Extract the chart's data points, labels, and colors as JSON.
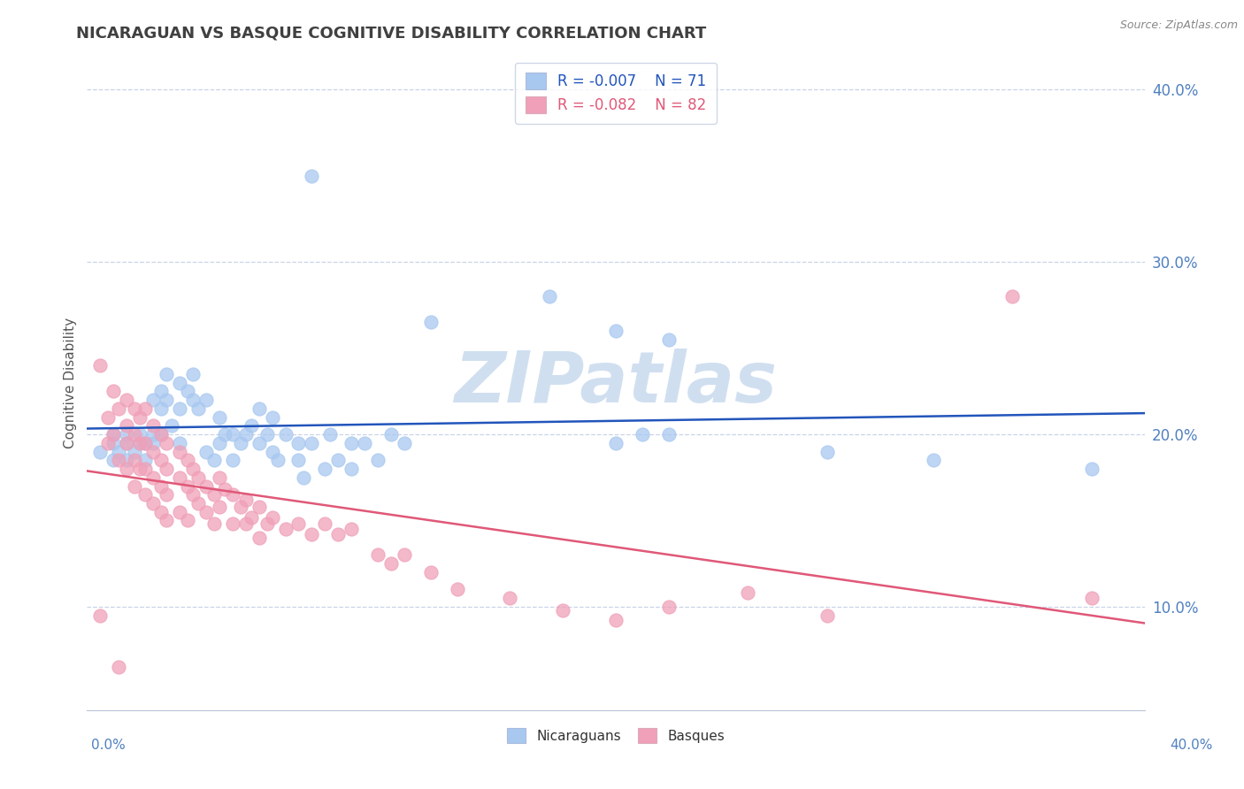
{
  "title": "NICARAGUAN VS BASQUE COGNITIVE DISABILITY CORRELATION CHART",
  "source": "Source: ZipAtlas.com",
  "ylabel": "Cognitive Disability",
  "xlim": [
    0.0,
    0.4
  ],
  "ylim": [
    0.04,
    0.42
  ],
  "yticks": [
    0.1,
    0.2,
    0.3,
    0.4
  ],
  "ytick_labels": [
    "10.0%",
    "20.0%",
    "30.0%",
    "40.0%"
  ],
  "xtick_labels": [
    "0.0%",
    "40.0%"
  ],
  "legend_blue_r": "R = -0.007",
  "legend_blue_n": "N = 71",
  "legend_pink_r": "R = -0.082",
  "legend_pink_n": "N = 82",
  "blue_color": "#a8c8f0",
  "pink_color": "#f0a0b8",
  "regression_blue_color": "#2255bb",
  "regression_pink_color": "#e05878",
  "watermark_text": "ZIPatlas",
  "watermark_color": "#d0dff0",
  "background_color": "#ffffff",
  "grid_color": "#c8d4e8",
  "title_color": "#404040",
  "axis_label_color": "#5080c0",
  "blue_scatter": [
    [
      0.005,
      0.19
    ],
    [
      0.01,
      0.195
    ],
    [
      0.01,
      0.185
    ],
    [
      0.01,
      0.2
    ],
    [
      0.012,
      0.19
    ],
    [
      0.015,
      0.185
    ],
    [
      0.015,
      0.195
    ],
    [
      0.015,
      0.2
    ],
    [
      0.018,
      0.19
    ],
    [
      0.02,
      0.2
    ],
    [
      0.02,
      0.195
    ],
    [
      0.022,
      0.185
    ],
    [
      0.022,
      0.195
    ],
    [
      0.025,
      0.22
    ],
    [
      0.025,
      0.2
    ],
    [
      0.025,
      0.195
    ],
    [
      0.028,
      0.215
    ],
    [
      0.028,
      0.225
    ],
    [
      0.028,
      0.2
    ],
    [
      0.03,
      0.22
    ],
    [
      0.03,
      0.235
    ],
    [
      0.032,
      0.205
    ],
    [
      0.035,
      0.23
    ],
    [
      0.035,
      0.215
    ],
    [
      0.035,
      0.195
    ],
    [
      0.038,
      0.225
    ],
    [
      0.04,
      0.22
    ],
    [
      0.04,
      0.235
    ],
    [
      0.042,
      0.215
    ],
    [
      0.045,
      0.22
    ],
    [
      0.045,
      0.19
    ],
    [
      0.048,
      0.185
    ],
    [
      0.05,
      0.195
    ],
    [
      0.05,
      0.21
    ],
    [
      0.052,
      0.2
    ],
    [
      0.055,
      0.2
    ],
    [
      0.055,
      0.185
    ],
    [
      0.058,
      0.195
    ],
    [
      0.06,
      0.2
    ],
    [
      0.062,
      0.205
    ],
    [
      0.065,
      0.215
    ],
    [
      0.065,
      0.195
    ],
    [
      0.068,
      0.2
    ],
    [
      0.07,
      0.21
    ],
    [
      0.07,
      0.19
    ],
    [
      0.072,
      0.185
    ],
    [
      0.075,
      0.2
    ],
    [
      0.08,
      0.185
    ],
    [
      0.08,
      0.195
    ],
    [
      0.082,
      0.175
    ],
    [
      0.085,
      0.195
    ],
    [
      0.09,
      0.18
    ],
    [
      0.092,
      0.2
    ],
    [
      0.095,
      0.185
    ],
    [
      0.1,
      0.195
    ],
    [
      0.1,
      0.18
    ],
    [
      0.105,
      0.195
    ],
    [
      0.11,
      0.185
    ],
    [
      0.115,
      0.2
    ],
    [
      0.12,
      0.195
    ],
    [
      0.085,
      0.35
    ],
    [
      0.13,
      0.265
    ],
    [
      0.175,
      0.28
    ],
    [
      0.2,
      0.26
    ],
    [
      0.2,
      0.195
    ],
    [
      0.21,
      0.2
    ],
    [
      0.22,
      0.255
    ],
    [
      0.22,
      0.2
    ],
    [
      0.28,
      0.19
    ],
    [
      0.32,
      0.185
    ],
    [
      0.38,
      0.18
    ]
  ],
  "pink_scatter": [
    [
      0.005,
      0.24
    ],
    [
      0.008,
      0.21
    ],
    [
      0.008,
      0.195
    ],
    [
      0.01,
      0.225
    ],
    [
      0.01,
      0.2
    ],
    [
      0.012,
      0.215
    ],
    [
      0.012,
      0.185
    ],
    [
      0.015,
      0.22
    ],
    [
      0.015,
      0.205
    ],
    [
      0.015,
      0.195
    ],
    [
      0.015,
      0.18
    ],
    [
      0.018,
      0.215
    ],
    [
      0.018,
      0.2
    ],
    [
      0.018,
      0.185
    ],
    [
      0.018,
      0.17
    ],
    [
      0.02,
      0.21
    ],
    [
      0.02,
      0.195
    ],
    [
      0.02,
      0.18
    ],
    [
      0.022,
      0.215
    ],
    [
      0.022,
      0.195
    ],
    [
      0.022,
      0.18
    ],
    [
      0.022,
      0.165
    ],
    [
      0.025,
      0.205
    ],
    [
      0.025,
      0.19
    ],
    [
      0.025,
      0.175
    ],
    [
      0.025,
      0.16
    ],
    [
      0.028,
      0.2
    ],
    [
      0.028,
      0.185
    ],
    [
      0.028,
      0.17
    ],
    [
      0.028,
      0.155
    ],
    [
      0.03,
      0.195
    ],
    [
      0.03,
      0.18
    ],
    [
      0.03,
      0.165
    ],
    [
      0.03,
      0.15
    ],
    [
      0.035,
      0.19
    ],
    [
      0.035,
      0.175
    ],
    [
      0.035,
      0.155
    ],
    [
      0.038,
      0.185
    ],
    [
      0.038,
      0.17
    ],
    [
      0.038,
      0.15
    ],
    [
      0.04,
      0.18
    ],
    [
      0.04,
      0.165
    ],
    [
      0.042,
      0.175
    ],
    [
      0.042,
      0.16
    ],
    [
      0.045,
      0.17
    ],
    [
      0.045,
      0.155
    ],
    [
      0.048,
      0.165
    ],
    [
      0.048,
      0.148
    ],
    [
      0.05,
      0.175
    ],
    [
      0.05,
      0.158
    ],
    [
      0.052,
      0.168
    ],
    [
      0.055,
      0.165
    ],
    [
      0.055,
      0.148
    ],
    [
      0.058,
      0.158
    ],
    [
      0.06,
      0.162
    ],
    [
      0.06,
      0.148
    ],
    [
      0.062,
      0.152
    ],
    [
      0.065,
      0.158
    ],
    [
      0.065,
      0.14
    ],
    [
      0.068,
      0.148
    ],
    [
      0.07,
      0.152
    ],
    [
      0.075,
      0.145
    ],
    [
      0.08,
      0.148
    ],
    [
      0.085,
      0.142
    ],
    [
      0.09,
      0.148
    ],
    [
      0.095,
      0.142
    ],
    [
      0.1,
      0.145
    ],
    [
      0.11,
      0.13
    ],
    [
      0.115,
      0.125
    ],
    [
      0.12,
      0.13
    ],
    [
      0.13,
      0.12
    ],
    [
      0.14,
      0.11
    ],
    [
      0.16,
      0.105
    ],
    [
      0.18,
      0.098
    ],
    [
      0.2,
      0.092
    ],
    [
      0.22,
      0.1
    ],
    [
      0.25,
      0.108
    ],
    [
      0.28,
      0.095
    ],
    [
      0.35,
      0.28
    ],
    [
      0.38,
      0.105
    ],
    [
      0.005,
      0.095
    ],
    [
      0.012,
      0.065
    ]
  ]
}
